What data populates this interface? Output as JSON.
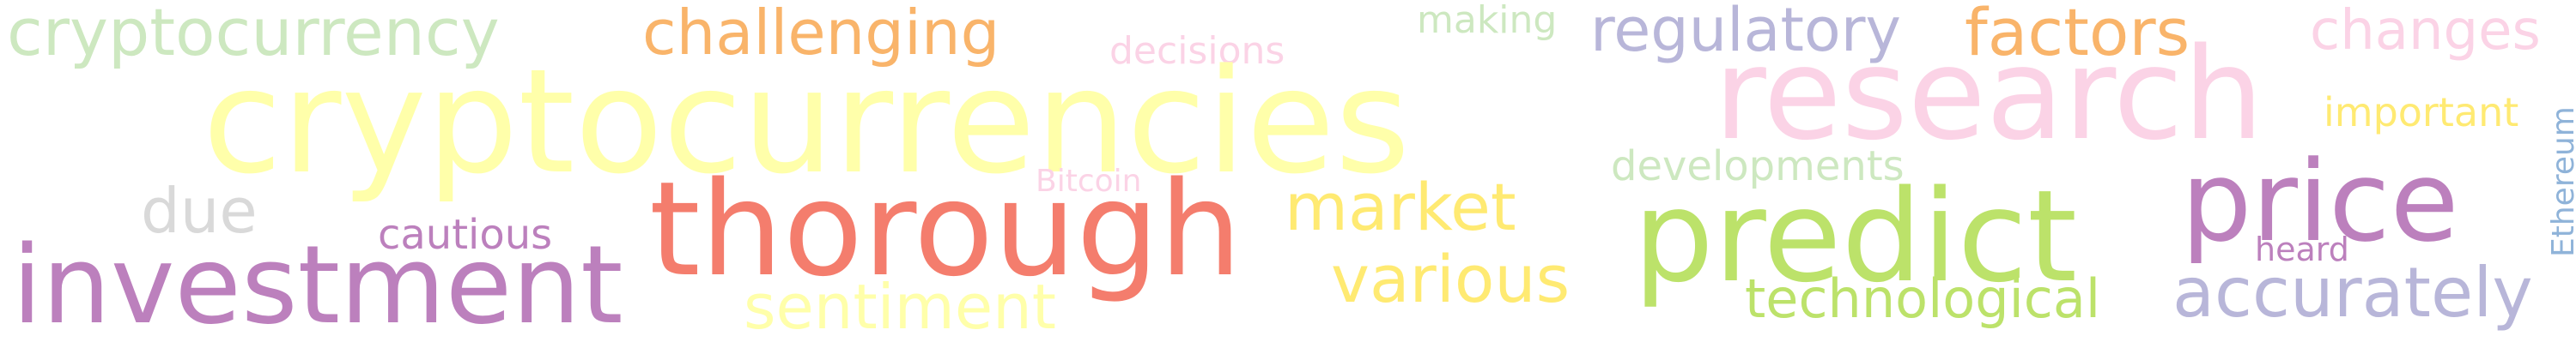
{
  "words": [
    {
      "id": "cryptocurrency",
      "text": "cryptocurrency",
      "color": "#cde8c0"
    },
    {
      "id": "challenging",
      "text": "challenging",
      "color": "#f9b46a"
    },
    {
      "id": "decisions",
      "text": "decisions",
      "color": "#fbd3e6"
    },
    {
      "id": "making",
      "text": "making",
      "color": "#cde8c0"
    },
    {
      "id": "regulatory",
      "text": "regulatory",
      "color": "#b8b6d9"
    },
    {
      "id": "factors",
      "text": "factors",
      "color": "#f9b46a"
    },
    {
      "id": "changes",
      "text": "changes",
      "color": "#fbd3e6"
    },
    {
      "id": "cryptocurrencies",
      "text": "cryptocurrencies",
      "color": "#ffffaa"
    },
    {
      "id": "research",
      "text": "research",
      "color": "#fbd3e6"
    },
    {
      "id": "important",
      "text": "important",
      "color": "#ffea72"
    },
    {
      "id": "ethereum",
      "text": "Ethereum",
      "color": "#8fb3d9"
    },
    {
      "id": "bitcoin",
      "text": "Bitcoin",
      "color": "#fbd3e6"
    },
    {
      "id": "developments",
      "text": "developments",
      "color": "#cde8c0"
    },
    {
      "id": "due",
      "text": "due",
      "color": "#d9d9d9"
    },
    {
      "id": "thorough",
      "text": "thorough",
      "color": "#f47d6d"
    },
    {
      "id": "market",
      "text": "market",
      "color": "#ffea72"
    },
    {
      "id": "predict",
      "text": "predict",
      "color": "#bce26a"
    },
    {
      "id": "price",
      "text": "price",
      "color": "#bc80bd"
    },
    {
      "id": "cautious",
      "text": "cautious",
      "color": "#bc80bd"
    },
    {
      "id": "heard",
      "text": "heard",
      "color": "#bc80bd"
    },
    {
      "id": "investment",
      "text": "investment",
      "color": "#bc80bd"
    },
    {
      "id": "various",
      "text": "various",
      "color": "#ffea72"
    },
    {
      "id": "sentiment",
      "text": "sentiment",
      "color": "#ffffaa"
    },
    {
      "id": "technological",
      "text": "technological",
      "color": "#bce26a"
    },
    {
      "id": "accurately",
      "text": "accurately",
      "color": "#b8b6d9"
    }
  ]
}
